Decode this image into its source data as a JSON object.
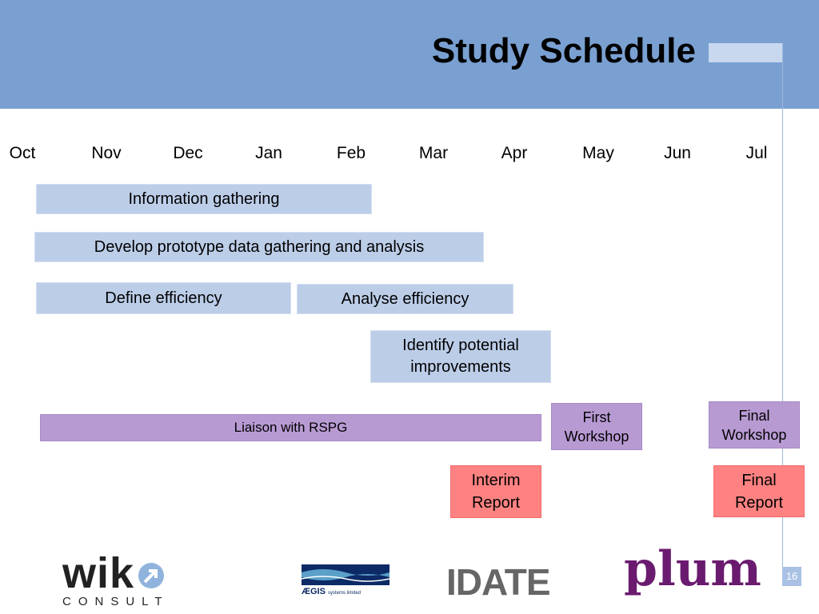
{
  "slide": {
    "title": "Study Schedule",
    "page_number": "16"
  },
  "timeline": {
    "months": [
      "Oct",
      "Nov",
      "Dec",
      "Jan",
      "Feb",
      "Mar",
      "Apr",
      "May",
      "Jun",
      "Jul"
    ]
  },
  "tasks": {
    "information_gathering": "Information gathering",
    "develop_prototype": "Develop prototype data gathering and analysis",
    "define_efficiency": "Define efficiency",
    "analyse_efficiency": "Analyse efficiency",
    "identify_improvements": "Identify potential\nimprovements",
    "liaison": "Liaison with RSPG",
    "first_workshop": "First\nWorkshop",
    "final_workshop": "Final\nWorkshop",
    "interim_report": "Interim\nReport",
    "final_report": "Final\nReport"
  },
  "logos": {
    "wik_main": "wik",
    "wik_sub": "CONSULT",
    "aegis_main": "ÆGIS",
    "aegis_sub": "systems limited",
    "idate": "IDATE",
    "plum": "plum"
  },
  "colors": {
    "header": "#7aa0d2",
    "task_blue": "#bccde8",
    "task_purple": "#b89ad3",
    "task_red": "#ff8282"
  }
}
